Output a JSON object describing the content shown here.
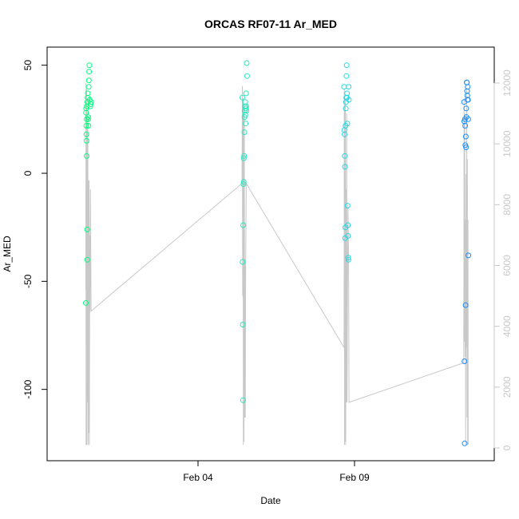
{
  "chart_data": {
    "type": "scatter",
    "title": "ORCAS RF07-11 Ar_MED",
    "xlabel": "Date",
    "ylabel": "Ar_MED",
    "x_ticks": [
      "Feb 04",
      "Feb 09"
    ],
    "y_ticks": [
      "50",
      "0",
      "-50",
      "-100"
    ],
    "y2_ticks": [
      "0",
      "2000",
      "4000",
      "6000",
      "8000",
      "10000",
      "12000"
    ],
    "ylim": [
      -125,
      52
    ],
    "y2lim": [
      0,
      12000
    ],
    "grid": false,
    "colors": {
      "rf07": "#00ff7f",
      "rf08": "#2be6c0",
      "rf09": "#26d9e6",
      "rf10": "#1a8cff",
      "altitude_line": "#c8c8c8"
    },
    "series": [
      {
        "points": [
          [
            "2016-01-31T10:00",
            -60
          ],
          [
            "2016-01-31T10:10",
            28
          ],
          [
            "2016-01-31T10:15",
            30
          ],
          [
            "2016-01-31T10:20",
            22
          ],
          [
            "2016-01-31T10:25",
            18
          ],
          [
            "2016-01-31T10:30",
            15
          ],
          [
            "2016-01-31T10:35",
            8
          ],
          [
            "2016-01-31T10:40",
            25
          ],
          [
            "2016-01-31T10:45",
            31
          ],
          [
            "2016-01-31T11:00",
            -26
          ],
          [
            "2016-01-31T11:05",
            -40
          ],
          [
            "2016-01-31T11:10",
            33
          ],
          [
            "2016-01-31T11:20",
            35
          ],
          [
            "2016-01-31T11:30",
            37
          ],
          [
            "2016-01-31T11:40",
            26
          ],
          [
            "2016-01-31T11:50",
            25
          ],
          [
            "2016-01-31T12:00",
            22
          ],
          [
            "2016-01-31T12:10",
            40
          ],
          [
            "2016-01-31T12:20",
            43
          ],
          [
            "2016-01-31T12:30",
            47
          ],
          [
            "2016-01-31T12:40",
            50
          ],
          [
            "2016-01-31T13:00",
            34
          ],
          [
            "2016-01-31T13:20",
            31
          ],
          [
            "2016-01-31T13:40",
            32
          ],
          [
            "2016-01-31T14:00",
            33
          ]
        ]
      },
      {
        "points": [
          [
            "2016-02-05T10:00",
            35
          ],
          [
            "2016-02-05T10:10",
            -41
          ],
          [
            "2016-02-05T10:20",
            -70
          ],
          [
            "2016-02-05T10:30",
            -105
          ],
          [
            "2016-02-05T10:40",
            -24
          ],
          [
            "2016-02-05T10:50",
            -5
          ],
          [
            "2016-02-05T11:00",
            -4
          ],
          [
            "2016-02-05T11:10",
            7
          ],
          [
            "2016-02-05T11:20",
            8
          ],
          [
            "2016-02-05T11:30",
            19
          ],
          [
            "2016-02-05T11:40",
            26
          ],
          [
            "2016-02-05T11:50",
            29
          ],
          [
            "2016-02-05T12:00",
            31
          ],
          [
            "2016-02-05T12:10",
            33
          ],
          [
            "2016-02-05T12:20",
            27
          ],
          [
            "2016-02-05T12:30",
            23
          ],
          [
            "2016-02-05T12:40",
            30
          ],
          [
            "2016-02-05T12:50",
            37
          ],
          [
            "2016-02-05T13:00",
            31
          ],
          [
            "2016-02-05T13:10",
            29
          ],
          [
            "2016-02-05T13:20",
            51
          ],
          [
            "2016-02-05T13:40",
            45
          ]
        ]
      },
      {
        "points": [
          [
            "2016-02-08T16:00",
            40
          ],
          [
            "2016-02-08T16:10",
            20
          ],
          [
            "2016-02-08T16:20",
            18
          ],
          [
            "2016-02-08T16:30",
            8
          ],
          [
            "2016-02-08T16:40",
            3
          ],
          [
            "2016-02-08T16:50",
            -30
          ],
          [
            "2016-02-08T17:00",
            -25
          ],
          [
            "2016-02-08T17:10",
            22
          ],
          [
            "2016-02-08T17:20",
            30
          ],
          [
            "2016-02-08T17:30",
            33
          ],
          [
            "2016-02-08T17:40",
            35
          ],
          [
            "2016-02-08T17:50",
            45
          ],
          [
            "2016-02-08T18:00",
            50
          ],
          [
            "2016-02-08T18:10",
            35
          ],
          [
            "2016-02-08T18:20",
            37
          ],
          [
            "2016-02-08T18:30",
            23
          ],
          [
            "2016-02-08T18:40",
            -15
          ],
          [
            "2016-02-08T18:50",
            -24
          ],
          [
            "2016-02-08T19:00",
            -29
          ],
          [
            "2016-02-08T19:10",
            -39
          ],
          [
            "2016-02-08T19:20",
            -40
          ],
          [
            "2016-02-08T19:30",
            40
          ],
          [
            "2016-02-08T19:40",
            34
          ]
        ]
      },
      {
        "points": [
          [
            "2016-02-12T12:00",
            33
          ],
          [
            "2016-02-12T12:10",
            24
          ],
          [
            "2016-02-12T12:20",
            -87
          ],
          [
            "2016-02-12T12:30",
            -125
          ],
          [
            "2016-02-12T12:40",
            25
          ],
          [
            "2016-02-12T12:50",
            22
          ],
          [
            "2016-02-12T13:00",
            13
          ],
          [
            "2016-02-12T13:10",
            -61
          ],
          [
            "2016-02-12T13:20",
            17
          ],
          [
            "2016-02-12T13:30",
            12
          ],
          [
            "2016-02-12T13:40",
            30
          ],
          [
            "2016-02-12T13:50",
            26
          ],
          [
            "2016-02-12T14:00",
            42
          ],
          [
            "2016-02-12T14:10",
            42
          ],
          [
            "2016-02-12T14:20",
            38
          ],
          [
            "2016-02-12T14:30",
            36
          ],
          [
            "2016-02-12T14:40",
            34
          ],
          [
            "2016-02-12T14:50",
            40
          ],
          [
            "2016-02-12T15:00",
            34
          ],
          [
            "2016-02-12T15:10",
            25
          ],
          [
            "2016-02-12T15:20",
            -38
          ]
        ]
      }
    ],
    "altitude_track": [
      [
        "2016-01-31T10:00",
        5200
      ],
      [
        "2016-01-31T10:05",
        12000
      ],
      [
        "2016-01-31T10:10",
        100
      ],
      [
        "2016-01-31T10:15",
        11500
      ],
      [
        "2016-01-31T10:25",
        1500
      ],
      [
        "2016-01-31T10:35",
        11800
      ],
      [
        "2016-01-31T10:45",
        100
      ],
      [
        "2016-01-31T11:00",
        11000
      ],
      [
        "2016-01-31T11:15",
        1500
      ],
      [
        "2016-01-31T11:30",
        11500
      ],
      [
        "2016-01-31T11:45",
        100
      ],
      [
        "2016-01-31T12:00",
        8800
      ],
      [
        "2016-01-31T12:15",
        500
      ],
      [
        "2016-01-31T12:30",
        8800
      ],
      [
        "2016-01-31T12:45",
        100
      ],
      [
        "2016-01-31T13:00",
        7000
      ],
      [
        "2016-01-31T13:15",
        4500
      ],
      [
        "2016-01-31T13:30",
        8500
      ],
      [
        "2016-01-31T14:00",
        4500
      ],
      [
        "2016-02-05T09:45",
        8700
      ],
      [
        "2016-02-05T10:00",
        11900
      ],
      [
        "2016-02-05T10:15",
        5000
      ],
      [
        "2016-02-05T10:30",
        11500
      ],
      [
        "2016-02-05T10:45",
        100
      ],
      [
        "2016-02-05T11:00",
        11000
      ],
      [
        "2016-02-05T11:15",
        200
      ],
      [
        "2016-02-05T11:30",
        11200
      ],
      [
        "2016-02-05T11:45",
        1000
      ],
      [
        "2016-02-05T12:00",
        6200
      ],
      [
        "2016-02-05T12:15",
        1000
      ],
      [
        "2016-02-05T12:30",
        5600
      ],
      [
        "2016-02-05T13:00",
        8700
      ],
      [
        "2016-02-08T16:00",
        3300
      ],
      [
        "2016-02-08T16:10",
        11800
      ],
      [
        "2016-02-08T16:20",
        100
      ],
      [
        "2016-02-08T16:30",
        11500
      ],
      [
        "2016-02-08T16:45",
        200
      ],
      [
        "2016-02-08T17:00",
        11500
      ],
      [
        "2016-02-08T17:15",
        100
      ],
      [
        "2016-02-08T17:30",
        8500
      ],
      [
        "2016-02-08T17:45",
        1500
      ],
      [
        "2016-02-08T18:00",
        11000
      ],
      [
        "2016-02-08T18:15",
        1500
      ],
      [
        "2016-02-08T19:00",
        8000
      ],
      [
        "2016-02-08T19:30",
        6000
      ],
      [
        "2016-02-08T19:45",
        1500
      ],
      [
        "2016-02-12T11:45",
        2800
      ],
      [
        "2016-02-12T12:00",
        11500
      ],
      [
        "2016-02-12T12:15",
        3500
      ],
      [
        "2016-02-12T12:30",
        11000
      ],
      [
        "2016-02-12T12:45",
        3000
      ],
      [
        "2016-02-12T13:00",
        7500
      ],
      [
        "2016-02-12T13:15",
        100
      ],
      [
        "2016-02-12T13:30",
        9000
      ],
      [
        "2016-02-12T13:45",
        3300
      ],
      [
        "2016-02-12T14:00",
        11800
      ],
      [
        "2016-02-12T14:15",
        1000
      ],
      [
        "2016-02-12T14:30",
        9500
      ],
      [
        "2016-02-12T14:45",
        100
      ],
      [
        "2016-02-12T15:00",
        7500
      ],
      [
        "2016-02-12T15:10",
        100
      ]
    ]
  }
}
